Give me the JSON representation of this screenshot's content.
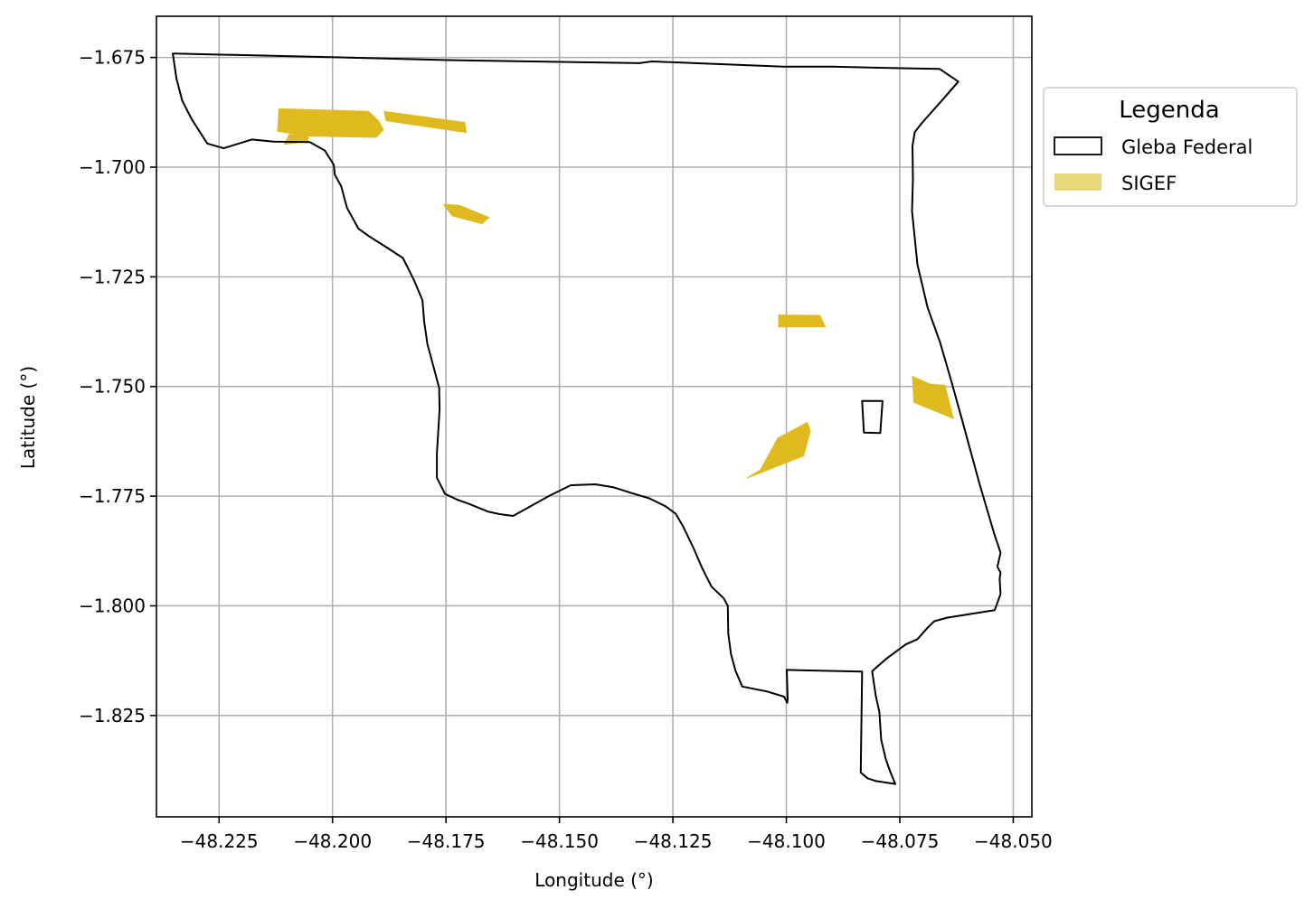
{
  "chart_data": {
    "type": "map",
    "xlabel": "Longitude (°)",
    "ylabel": "Latitude (°)",
    "xlim": [
      -48.2388,
      -48.0459
    ],
    "ylim": [
      -1.8481,
      -1.6656
    ],
    "x_ticks": [
      -48.225,
      -48.2,
      -48.175,
      -48.15,
      -48.125,
      -48.1,
      -48.075,
      -48.05
    ],
    "x_tick_labels": [
      "−48.225",
      "−48.200",
      "−48.175",
      "−48.150",
      "−48.125",
      "−48.100",
      "−48.075",
      "−48.050"
    ],
    "y_ticks": [
      -1.675,
      -1.7,
      -1.725,
      -1.75,
      -1.775,
      -1.8,
      -1.825
    ],
    "y_tick_labels": [
      "−1.675",
      "−1.700",
      "−1.725",
      "−1.750",
      "−1.775",
      "−1.800",
      "−1.825"
    ],
    "grid": true,
    "legend": {
      "title": "Legenda",
      "placement": "outside-upper-right",
      "entries": [
        {
          "label": "Gleba Federal",
          "style": "outline",
          "color": "#000000"
        },
        {
          "label": "SIGEF",
          "style": "fill",
          "color": "#e8d77b"
        }
      ]
    },
    "colors": {
      "gleba_outline": "#000000",
      "sigef_fill": "#dfba1f",
      "sigef_legend": "#e8d77b",
      "grid": "#b0b0b0"
    },
    "layers": [
      {
        "name": "Gleba Federal",
        "features": [
          {
            "coords": [
              [
                -48.2349,
                -1.6741
              ],
              [
                -48.2047,
                -1.6748
              ],
              [
                -48.1746,
                -1.6756
              ],
              [
                -48.1432,
                -1.6761
              ],
              [
                -48.1324,
                -1.6763
              ],
              [
                -48.1296,
                -1.6759
              ],
              [
                -48.1006,
                -1.6771
              ],
              [
                -48.0899,
                -1.6771
              ],
              [
                -48.0771,
                -1.6774
              ],
              [
                -48.0662,
                -1.6776
              ],
              [
                -48.0621,
                -1.6805
              ],
              [
                -48.0652,
                -1.6842
              ],
              [
                -48.0702,
                -1.69
              ],
              [
                -48.0717,
                -1.692
              ],
              [
                -48.0722,
                -1.6952
              ],
              [
                -48.0721,
                -1.7027
              ],
              [
                -48.0723,
                -1.71
              ],
              [
                -48.0711,
                -1.7222
              ],
              [
                -48.0689,
                -1.7319
              ],
              [
                -48.0661,
                -1.74
              ],
              [
                -48.0637,
                -1.7486
              ],
              [
                -48.0613,
                -1.7575
              ],
              [
                -48.0574,
                -1.7723
              ],
              [
                -48.0542,
                -1.7835
              ],
              [
                -48.0528,
                -1.7879
              ],
              [
                -48.0535,
                -1.7911
              ],
              [
                -48.0528,
                -1.7924
              ],
              [
                -48.053,
                -1.7938
              ],
              [
                -48.0528,
                -1.7973
              ],
              [
                -48.0541,
                -1.801
              ],
              [
                -48.0646,
                -1.8027
              ],
              [
                -48.0674,
                -1.8035
              ],
              [
                -48.0689,
                -1.805
              ],
              [
                -48.0711,
                -1.8076
              ],
              [
                -48.0737,
                -1.8088
              ],
              [
                -48.078,
                -1.8121
              ],
              [
                -48.0811,
                -1.8149
              ],
              [
                -48.0803,
                -1.8205
              ],
              [
                -48.0795,
                -1.8242
              ],
              [
                -48.0791,
                -1.8305
              ],
              [
                -48.0781,
                -1.8349
              ],
              [
                -48.0771,
                -1.8378
              ],
              [
                -48.076,
                -1.8406
              ],
              [
                -48.0804,
                -1.8399
              ],
              [
                -48.0821,
                -1.8393
              ],
              [
                -48.0836,
                -1.838
              ],
              [
                -48.0833,
                -1.815
              ],
              [
                -48.0999,
                -1.8146
              ],
              [
                -48.0997,
                -1.8213
              ],
              [
                -48.0998,
                -1.8221
              ],
              [
                -48.1005,
                -1.8207
              ],
              [
                -48.1043,
                -1.8195
              ],
              [
                -48.1097,
                -1.8184
              ],
              [
                -48.1112,
                -1.8148
              ],
              [
                -48.1122,
                -1.811
              ],
              [
                -48.1128,
                -1.8063
              ],
              [
                -48.1129,
                -1.8
              ],
              [
                -48.1138,
                -1.7983
              ],
              [
                -48.1165,
                -1.7956
              ],
              [
                -48.1186,
                -1.7913
              ],
              [
                -48.1205,
                -1.7867
              ],
              [
                -48.1228,
                -1.7818
              ],
              [
                -48.1244,
                -1.779
              ],
              [
                -48.1266,
                -1.7773
              ],
              [
                -48.1302,
                -1.7755
              ],
              [
                -48.1341,
                -1.7743
              ],
              [
                -48.138,
                -1.773
              ],
              [
                -48.1421,
                -1.7723
              ],
              [
                -48.1475,
                -1.7725
              ],
              [
                -48.1522,
                -1.7749
              ],
              [
                -48.156,
                -1.7771
              ],
              [
                -48.1602,
                -1.7795
              ],
              [
                -48.1632,
                -1.7791
              ],
              [
                -48.1658,
                -1.7785
              ],
              [
                -48.1698,
                -1.7768
              ],
              [
                -48.1725,
                -1.7758
              ],
              [
                -48.1752,
                -1.7745
              ],
              [
                -48.177,
                -1.7708
              ],
              [
                -48.177,
                -1.7653
              ],
              [
                -48.1764,
                -1.7552
              ],
              [
                -48.1765,
                -1.7503
              ],
              [
                -48.1778,
                -1.7453
              ],
              [
                -48.1791,
                -1.7403
              ],
              [
                -48.1798,
                -1.7353
              ],
              [
                -48.1802,
                -1.7303
              ],
              [
                -48.1822,
                -1.7254
              ],
              [
                -48.1845,
                -1.7207
              ],
              [
                -48.1882,
                -1.7182
              ],
              [
                -48.1919,
                -1.7158
              ],
              [
                -48.1943,
                -1.714
              ],
              [
                -48.1968,
                -1.7093
              ],
              [
                -48.1981,
                -1.7043
              ],
              [
                -48.1995,
                -1.7017
              ],
              [
                -48.1997,
                -1.6995
              ],
              [
                -48.2017,
                -1.6962
              ],
              [
                -48.205,
                -1.6943
              ],
              [
                -48.213,
                -1.6942
              ],
              [
                -48.2178,
                -1.6937
              ],
              [
                -48.224,
                -1.6957
              ],
              [
                -48.2276,
                -1.6946
              ],
              [
                -48.231,
                -1.6891
              ],
              [
                -48.2331,
                -1.6849
              ],
              [
                -48.2344,
                -1.6798
              ],
              [
                -48.2352,
                -1.6741
              ]
            ]
          },
          {
            "coords": [
              [
                -48.0833,
                -1.7533
              ],
              [
                -48.0788,
                -1.7533
              ],
              [
                -48.0793,
                -1.7606
              ],
              [
                -48.0829,
                -1.7605
              ],
              [
                -48.0833,
                -1.7533
              ]
            ]
          }
        ]
      },
      {
        "name": "SIGEF",
        "features": [
          {
            "coords": [
              [
                -48.2118,
                -1.6867
              ],
              [
                -48.1921,
                -1.6873
              ],
              [
                -48.1898,
                -1.6895
              ],
              [
                -48.1888,
                -1.6915
              ],
              [
                -48.1904,
                -1.6932
              ],
              [
                -48.2061,
                -1.6929
              ],
              [
                -48.2121,
                -1.6918
              ],
              [
                -48.2118,
                -1.6867
              ]
            ]
          },
          {
            "coords": [
              [
                -48.2096,
                -1.6926
              ],
              [
                -48.2054,
                -1.6926
              ],
              [
                -48.2054,
                -1.6941
              ],
              [
                -48.2106,
                -1.6948
              ],
              [
                -48.2096,
                -1.6926
              ]
            ]
          },
          {
            "coords": [
              [
                -48.1886,
                -1.6873
              ],
              [
                -48.1882,
                -1.6894
              ],
              [
                -48.1705,
                -1.6921
              ],
              [
                -48.1709,
                -1.6898
              ],
              [
                -48.1886,
                -1.6873
              ]
            ]
          },
          {
            "coords": [
              [
                -48.1755,
                -1.7085
              ],
              [
                -48.172,
                -1.7087
              ],
              [
                -48.1655,
                -1.7115
              ],
              [
                -48.1671,
                -1.7129
              ],
              [
                -48.1736,
                -1.7111
              ],
              [
                -48.1755,
                -1.7085
              ]
            ]
          },
          {
            "coords": [
              [
                -48.1017,
                -1.7337
              ],
              [
                -48.0926,
                -1.7338
              ],
              [
                -48.0914,
                -1.7364
              ],
              [
                -48.1017,
                -1.7364
              ],
              [
                -48.1017,
                -1.7337
              ]
            ]
          },
          {
            "coords": [
              [
                -48.0722,
                -1.7477
              ],
              [
                -48.0683,
                -1.7495
              ],
              [
                -48.0651,
                -1.7497
              ],
              [
                -48.0632,
                -1.7573
              ],
              [
                -48.0719,
                -1.7536
              ],
              [
                -48.0722,
                -1.7477
              ]
            ]
          },
          {
            "coords": [
              [
                -48.0954,
                -1.7582
              ],
              [
                -48.1019,
                -1.7618
              ],
              [
                -48.1057,
                -1.769
              ],
              [
                -48.1087,
                -1.7709
              ],
              [
                -48.0962,
                -1.7658
              ],
              [
                -48.0947,
                -1.7602
              ],
              [
                -48.0954,
                -1.7582
              ]
            ]
          }
        ]
      }
    ]
  }
}
